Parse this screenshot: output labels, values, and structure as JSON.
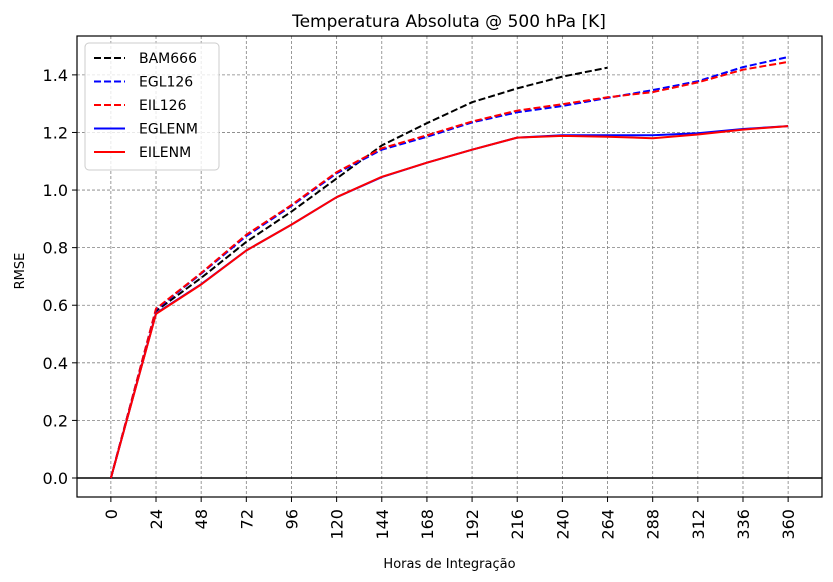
{
  "chart_data": {
    "type": "line",
    "title": "Temperatura Absoluta @ 500 hPa [K]",
    "xlabel": "Horas de Integração",
    "ylabel": "RMSE",
    "xlim": [
      -18,
      378
    ],
    "ylim": [
      -0.066,
      1.535
    ],
    "grid": true,
    "legend_position": "top-left",
    "x_ticks": [
      0,
      24,
      48,
      72,
      96,
      120,
      144,
      168,
      192,
      216,
      240,
      264,
      288,
      312,
      336,
      360
    ],
    "x_tick_labels": [
      "0",
      "24",
      "48",
      "72",
      "96",
      "120",
      "144",
      "168",
      "192",
      "216",
      "240",
      "264",
      "288",
      "312",
      "336",
      "360"
    ],
    "y_ticks": [
      0.0,
      0.2,
      0.4,
      0.6,
      0.8,
      1.0,
      1.2,
      1.4
    ],
    "y_tick_labels": [
      "0.0",
      "0.2",
      "0.4",
      "0.6",
      "0.8",
      "1.0",
      "1.2",
      "1.4"
    ],
    "reference_line": {
      "y": 0.0,
      "color": "#000000"
    },
    "series": [
      {
        "name": "BAM666",
        "color": "#000000",
        "style": "dashed",
        "x": [
          0,
          24,
          48,
          72,
          96,
          120,
          144,
          168,
          192,
          216,
          240,
          264
        ],
        "values": [
          0.0,
          0.58,
          0.695,
          0.82,
          0.925,
          1.04,
          1.155,
          1.232,
          1.305,
          1.353,
          1.394,
          1.425
        ]
      },
      {
        "name": "EGL126",
        "color": "#0000ff",
        "style": "dashed",
        "x": [
          0,
          24,
          48,
          72,
          96,
          120,
          144,
          168,
          192,
          216,
          240,
          264,
          288,
          312,
          336,
          360
        ],
        "values": [
          0.0,
          0.585,
          0.71,
          0.84,
          0.945,
          1.058,
          1.14,
          1.185,
          1.235,
          1.27,
          1.292,
          1.32,
          1.347,
          1.378,
          1.427,
          1.462
        ]
      },
      {
        "name": "EIL126",
        "color": "#ff0000",
        "style": "dashed",
        "x": [
          0,
          24,
          48,
          72,
          96,
          120,
          144,
          168,
          192,
          216,
          240,
          264,
          288,
          312,
          336,
          360
        ],
        "values": [
          0.0,
          0.588,
          0.712,
          0.845,
          0.948,
          1.062,
          1.145,
          1.19,
          1.238,
          1.276,
          1.298,
          1.322,
          1.34,
          1.374,
          1.418,
          1.445
        ]
      },
      {
        "name": "EGLENM",
        "color": "#0000ff",
        "style": "solid",
        "x": [
          0,
          24,
          48,
          72,
          96,
          120,
          144,
          168,
          192,
          216,
          240,
          264,
          288,
          312,
          336,
          360
        ],
        "values": [
          0.0,
          0.572,
          0.673,
          0.79,
          0.88,
          0.975,
          1.045,
          1.095,
          1.14,
          1.182,
          1.19,
          1.19,
          1.19,
          1.197,
          1.212,
          1.222
        ]
      },
      {
        "name": "EILENM",
        "color": "#ff0000",
        "style": "solid",
        "x": [
          0,
          24,
          48,
          72,
          96,
          120,
          144,
          168,
          192,
          216,
          240,
          264,
          288,
          312,
          336,
          360
        ],
        "values": [
          0.0,
          0.57,
          0.672,
          0.79,
          0.88,
          0.975,
          1.046,
          1.095,
          1.14,
          1.182,
          1.188,
          1.185,
          1.18,
          1.193,
          1.21,
          1.222
        ]
      }
    ]
  }
}
